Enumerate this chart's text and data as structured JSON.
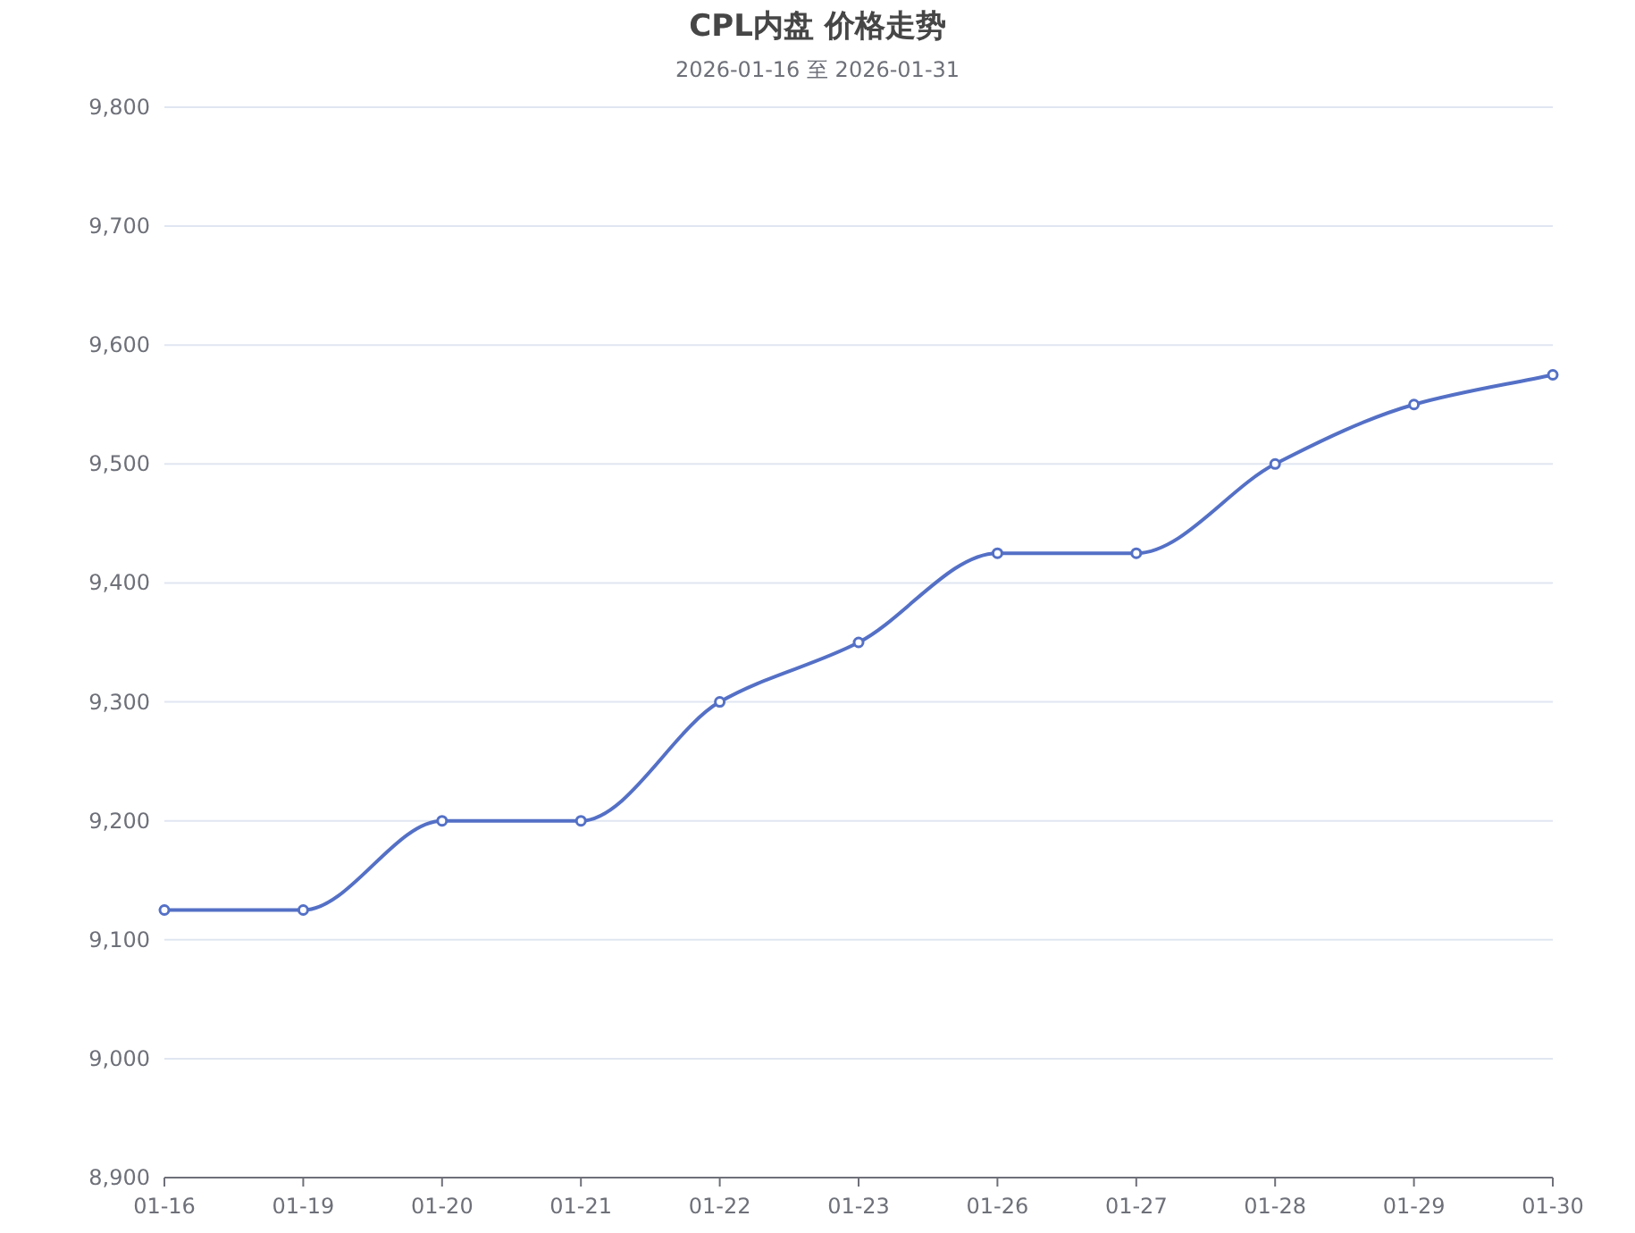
{
  "chart_data": {
    "type": "line",
    "title": "CPL内盘 价格走势",
    "subtitle": "2026-01-16 至 2026-01-31",
    "categories": [
      "01-16",
      "01-19",
      "01-20",
      "01-21",
      "01-22",
      "01-23",
      "01-26",
      "01-27",
      "01-28",
      "01-29",
      "01-30"
    ],
    "values": [
      9125,
      9125,
      9200,
      9200,
      9300,
      9350,
      9425,
      9425,
      9500,
      9550,
      9575
    ],
    "color": "#5470c6",
    "ylim": [
      8900,
      9800
    ],
    "yticks": [
      {
        "value": 8900,
        "label": "8,900"
      },
      {
        "value": 9000,
        "label": "9,000"
      },
      {
        "value": 9100,
        "label": "9,100"
      },
      {
        "value": 9200,
        "label": "9,200"
      },
      {
        "value": 9300,
        "label": "9,300"
      },
      {
        "value": 9400,
        "label": "9,400"
      },
      {
        "value": 9500,
        "label": "9,500"
      },
      {
        "value": 9600,
        "label": "9,600"
      },
      {
        "value": 9700,
        "label": "9,700"
      },
      {
        "value": 9800,
        "label": "9,800"
      }
    ],
    "grid": "y",
    "marker": "circle"
  }
}
